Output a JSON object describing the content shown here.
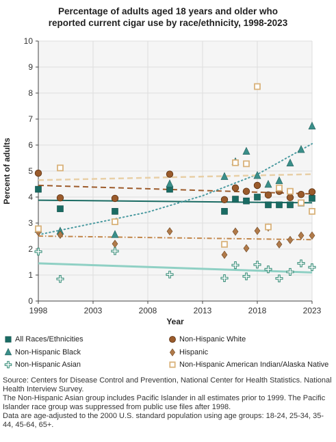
{
  "title": {
    "line1": "Percentage of adults aged 18 years and older who",
    "line2": "reported current cigar use by race/ethnicity, 1998-2023"
  },
  "notes": {
    "source": "Source: Centers for Disease Control and Prevention, National Center for Health Statistics. National Health Interview Survey.",
    "note1": "The Non-Hispanic Asian group includes Pacific Islander in all estimates prior to 1999. The Pacific Islander race group was suppressed from public use files after 1998.",
    "note2": "Data are age-adjusted to the 2000 U.S. standard population using age groups: 18-24, 25-34, 35-44, 45-64, 65+."
  },
  "chart_data": {
    "type": "scatter",
    "xlabel": "Year",
    "ylabel": "Percent of adults",
    "xlim": [
      1998,
      2023
    ],
    "ylim": [
      0,
      10
    ],
    "xticks": [
      1998,
      2003,
      2008,
      2013,
      2018,
      2023
    ],
    "yticks": [
      0,
      1,
      2,
      3,
      4,
      5,
      6,
      7,
      8,
      9,
      10
    ],
    "grid": true,
    "legend_position": "bottom",
    "series": [
      {
        "name": "All Races/Ethnicities",
        "marker": "square",
        "color": "#1a6b63",
        "line_style": "solid",
        "trend": [
          [
            1998,
            3.88
          ],
          [
            2023,
            3.78
          ]
        ],
        "x": [
          1998,
          2000,
          2005,
          2010,
          2015,
          2016,
          2017,
          2018,
          2019,
          2020,
          2021,
          2022,
          2023
        ],
        "y": [
          4.3,
          3.55,
          3.45,
          4.3,
          3.45,
          3.92,
          3.85,
          4.0,
          3.7,
          3.7,
          3.7,
          3.77,
          3.95
        ]
      },
      {
        "name": "Non-Hispanic White",
        "marker": "circle",
        "color": "#a0522d",
        "line_style": "dashed",
        "trend": [
          [
            1998,
            4.45
          ],
          [
            2023,
            4.12
          ]
        ],
        "x": [
          1998,
          2000,
          2005,
          2010,
          2015,
          2016,
          2017,
          2018,
          2019,
          2020,
          2021,
          2022,
          2023
        ],
        "y": [
          4.92,
          3.97,
          3.95,
          4.88,
          3.9,
          4.35,
          4.22,
          4.45,
          4.08,
          4.22,
          3.98,
          4.1,
          4.2
        ]
      },
      {
        "name": "Non-Hispanic Black",
        "marker": "triangle",
        "color": "#3a8f8a",
        "line_style": "dotted",
        "trend": [
          [
            1998,
            2.55
          ],
          [
            2008,
            3.42
          ],
          [
            2013,
            4.05
          ],
          [
            2018,
            4.87
          ],
          [
            2023,
            6.05
          ]
        ],
        "x": [
          1998,
          2000,
          2005,
          2010,
          2015,
          2016,
          2017,
          2018,
          2019,
          2020,
          2021,
          2022,
          2023
        ],
        "y": [
          2.75,
          2.68,
          2.55,
          4.5,
          4.78,
          5.35,
          5.75,
          4.82,
          4.48,
          4.62,
          5.3,
          5.82,
          6.72
        ]
      },
      {
        "name": "Hispanic",
        "marker": "diamond",
        "color": "#b07a4a",
        "line_style": "dashdot",
        "trend": [
          [
            1998,
            2.5
          ],
          [
            2023,
            2.36
          ]
        ],
        "x": [
          1998,
          2000,
          2005,
          2010,
          2015,
          2016,
          2017,
          2018,
          2019,
          2020,
          2021,
          2022,
          2023
        ],
        "y": [
          2.65,
          2.55,
          2.2,
          2.68,
          1.78,
          2.67,
          2.03,
          2.7,
          2.83,
          2.18,
          2.35,
          2.52,
          2.52
        ]
      },
      {
        "name": "Non-Hispanic Asian",
        "marker": "plus",
        "color": "#3a8f7a",
        "line_style": "solid",
        "trend": [
          [
            1998,
            1.45
          ],
          [
            2023,
            1.1
          ]
        ],
        "x": [
          1998,
          2000,
          2005,
          2010,
          2015,
          2016,
          2017,
          2018,
          2019,
          2020,
          2021,
          2022,
          2023
        ],
        "y": [
          1.9,
          0.85,
          1.92,
          1.02,
          0.88,
          1.38,
          0.95,
          1.4,
          1.22,
          0.87,
          1.12,
          1.45,
          1.3
        ]
      },
      {
        "name": "Non-Hispanic American Indian/Alaska Native",
        "marker": "open-square",
        "color": "#d9b27a",
        "line_style": "dashed",
        "trend": [
          [
            1998,
            4.65
          ],
          [
            2023,
            4.88
          ]
        ],
        "x": [
          1998,
          2000,
          2005,
          2015,
          2016,
          2017,
          2018,
          2019,
          2020,
          2021,
          2022,
          2023
        ],
        "y": [
          2.78,
          5.12,
          3.05,
          2.18,
          5.32,
          5.28,
          8.25,
          2.85,
          4.35,
          4.22,
          3.78,
          3.45
        ]
      }
    ]
  }
}
